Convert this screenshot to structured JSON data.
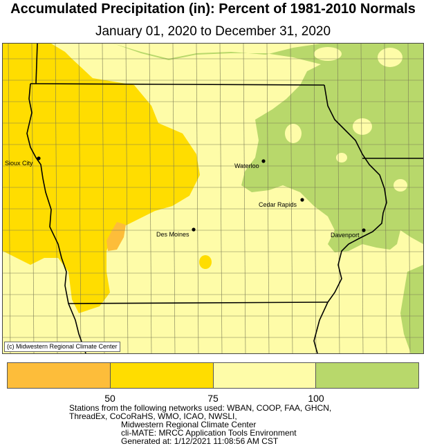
{
  "header": {
    "title": "Accumulated Precipitation (in): Percent of 1981-2010 Normals",
    "subtitle": "January 01, 2020 to December 31, 2020"
  },
  "map": {
    "credit": "(c) Midwestern Regional Climate Center",
    "cities": [
      {
        "name": "Sioux City"
      },
      {
        "name": "Waterloo"
      },
      {
        "name": "Cedar Rapids"
      },
      {
        "name": "Des Moines"
      },
      {
        "name": "Davenport"
      }
    ],
    "colors": {
      "below_50": "#fdbd3a",
      "50_75": "#ffdd00",
      "75_100": "#fefca8",
      "above_100": "#b8d86b",
      "water": "#ffffff",
      "boundary": "#000000",
      "county": "#7a7a55"
    }
  },
  "legend": {
    "swatches": [
      {
        "color": "#fdbd3a"
      },
      {
        "color": "#ffdd00"
      },
      {
        "color": "#fefca8"
      },
      {
        "color": "#b8d86b"
      }
    ],
    "ticks": [
      "50",
      "75",
      "100"
    ]
  },
  "footer": {
    "lines": [
      "Stations from the following networks used: WBAN, COOP, FAA, GHCN,",
      "ThreadEx, CoCoRaHS, WMO, ICAO, NWSLI,",
      "Midwestern Regional Climate Center",
      "cli-MATE: MRCC Application Tools Environment",
      "Generated at: 1/12/2021 11:08:56 AM CST"
    ]
  }
}
